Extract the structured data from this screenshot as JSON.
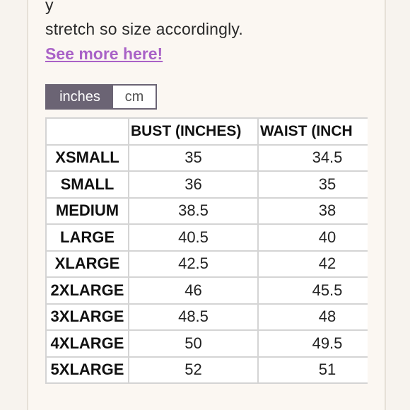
{
  "product": {
    "cut_text": "y",
    "description": "stretch so size accordingly.",
    "link_label": "See more here!"
  },
  "unit_toggle": {
    "options": [
      "inches",
      "cm"
    ],
    "selected": "inches"
  },
  "size_table": {
    "headers": [
      "",
      "BUST (INCHES)",
      "WAIST (INCH",
      ""
    ],
    "rows": [
      {
        "size": "XSMALL",
        "bust": "35",
        "waist": "34.5"
      },
      {
        "size": "SMALL",
        "bust": "36",
        "waist": "35"
      },
      {
        "size": "MEDIUM",
        "bust": "38.5",
        "waist": "38"
      },
      {
        "size": "LARGE",
        "bust": "40.5",
        "waist": "40"
      },
      {
        "size": "XLARGE",
        "bust": "42.5",
        "waist": "42"
      },
      {
        "size": "2XLARGE",
        "bust": "46",
        "waist": "45.5"
      },
      {
        "size": "3XLARGE",
        "bust": "48.5",
        "waist": "48"
      },
      {
        "size": "4XLARGE",
        "bust": "50",
        "waist": "49.5"
      },
      {
        "size": "5XLARGE",
        "bust": "52",
        "waist": "51"
      }
    ]
  }
}
